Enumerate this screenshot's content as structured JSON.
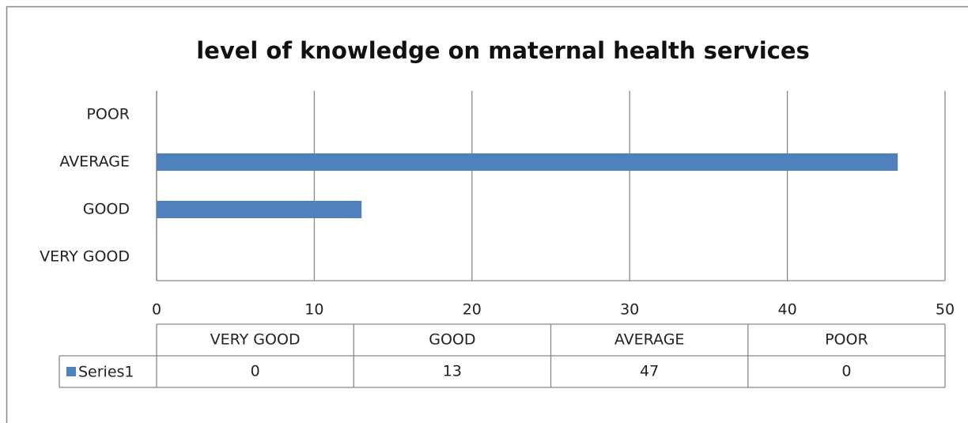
{
  "chart_data": {
    "type": "bar",
    "orientation": "horizontal",
    "title": "level of knowledge on maternal health services",
    "categories": [
      "VERY GOOD",
      "GOOD",
      "AVERAGE",
      "POOR"
    ],
    "series": [
      {
        "name": "Series1",
        "color": "#4f81bd",
        "values": [
          0,
          13,
          47,
          0
        ]
      }
    ],
    "xlim": [
      0,
      50
    ],
    "xticks": [
      0,
      10,
      20,
      30,
      40,
      50
    ],
    "grid": true,
    "data_table": true
  }
}
